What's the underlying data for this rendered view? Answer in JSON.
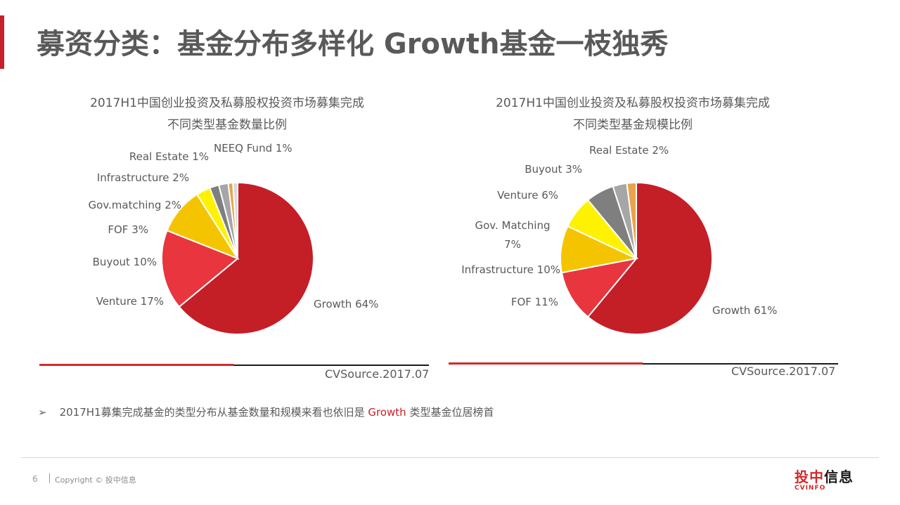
{
  "slide": {
    "title": "募资分类：基金分布多样化 Growth基金一枝独秀",
    "bullet_prefix": "2017H1募集完成基金的类型分布从基金数量和规模来看也依旧是",
    "bullet_highlight": "Growth",
    "bullet_suffix": "类型基金位居榜首",
    "bullet_marker": "➢",
    "page_number": "6",
    "copyright": "Copyright © 投中信息",
    "logo_text_red": "投中",
    "logo_text_dark": "信息",
    "logo_sub": "CVINFO"
  },
  "chart_data": [
    {
      "type": "pie",
      "title_line1": "2017H1中国创业投资及私募股权投资市场募集完成",
      "title_line2": "不同类型基金数量比例",
      "source": "CVSource.2017.07",
      "slices": [
        {
          "name": "Growth",
          "value": 64,
          "label": "Growth 64%",
          "color": "#c41e27"
        },
        {
          "name": "Venture",
          "value": 17,
          "label": "Venture 17%",
          "color": "#e8353e"
        },
        {
          "name": "Buyout",
          "value": 10,
          "label": "Buyout 10%",
          "color": "#f5c400"
        },
        {
          "name": "FOF",
          "value": 3,
          "label": "FOF 3%",
          "color": "#fff200"
        },
        {
          "name": "Gov.matching",
          "value": 2,
          "label": "Gov.matching 2%",
          "color": "#7f7f7f"
        },
        {
          "name": "Infrastructure",
          "value": 2,
          "label": "Infrastructure 2%",
          "color": "#a6a6a6"
        },
        {
          "name": "Real Estate",
          "value": 1,
          "label": "Real Estate 1%",
          "color": "#e8a44a"
        },
        {
          "name": "NEEQ Fund",
          "value": 1,
          "label": "NEEQ Fund 1%",
          "color": "#d9d9d9"
        }
      ]
    },
    {
      "type": "pie",
      "title_line1": "2017H1中国创业投资及私募股权投资市场募集完成",
      "title_line2": "不同类型基金规模比例",
      "source": "CVSource.2017.07",
      "slices": [
        {
          "name": "Growth",
          "value": 61,
          "label": "Growth 61%",
          "color": "#c41e27"
        },
        {
          "name": "FOF",
          "value": 11,
          "label": "FOF 11%",
          "color": "#e8353e"
        },
        {
          "name": "Infrastructure",
          "value": 10,
          "label": "Infrastructure 10%",
          "color": "#f5c400"
        },
        {
          "name": "Gov. Matching",
          "value": 7,
          "label": "Gov. Matching 7%",
          "label_lines": [
            "Gov. Matching",
            "7%"
          ],
          "color": "#fff200"
        },
        {
          "name": "Venture",
          "value": 6,
          "label": "Venture 6%",
          "color": "#7f7f7f"
        },
        {
          "name": "Buyout",
          "value": 3,
          "label": "Buyout 3%",
          "color": "#a6a6a6"
        },
        {
          "name": "Real Estate",
          "value": 2,
          "label": "Real Estate 2%",
          "color": "#e8a44a"
        }
      ]
    }
  ]
}
